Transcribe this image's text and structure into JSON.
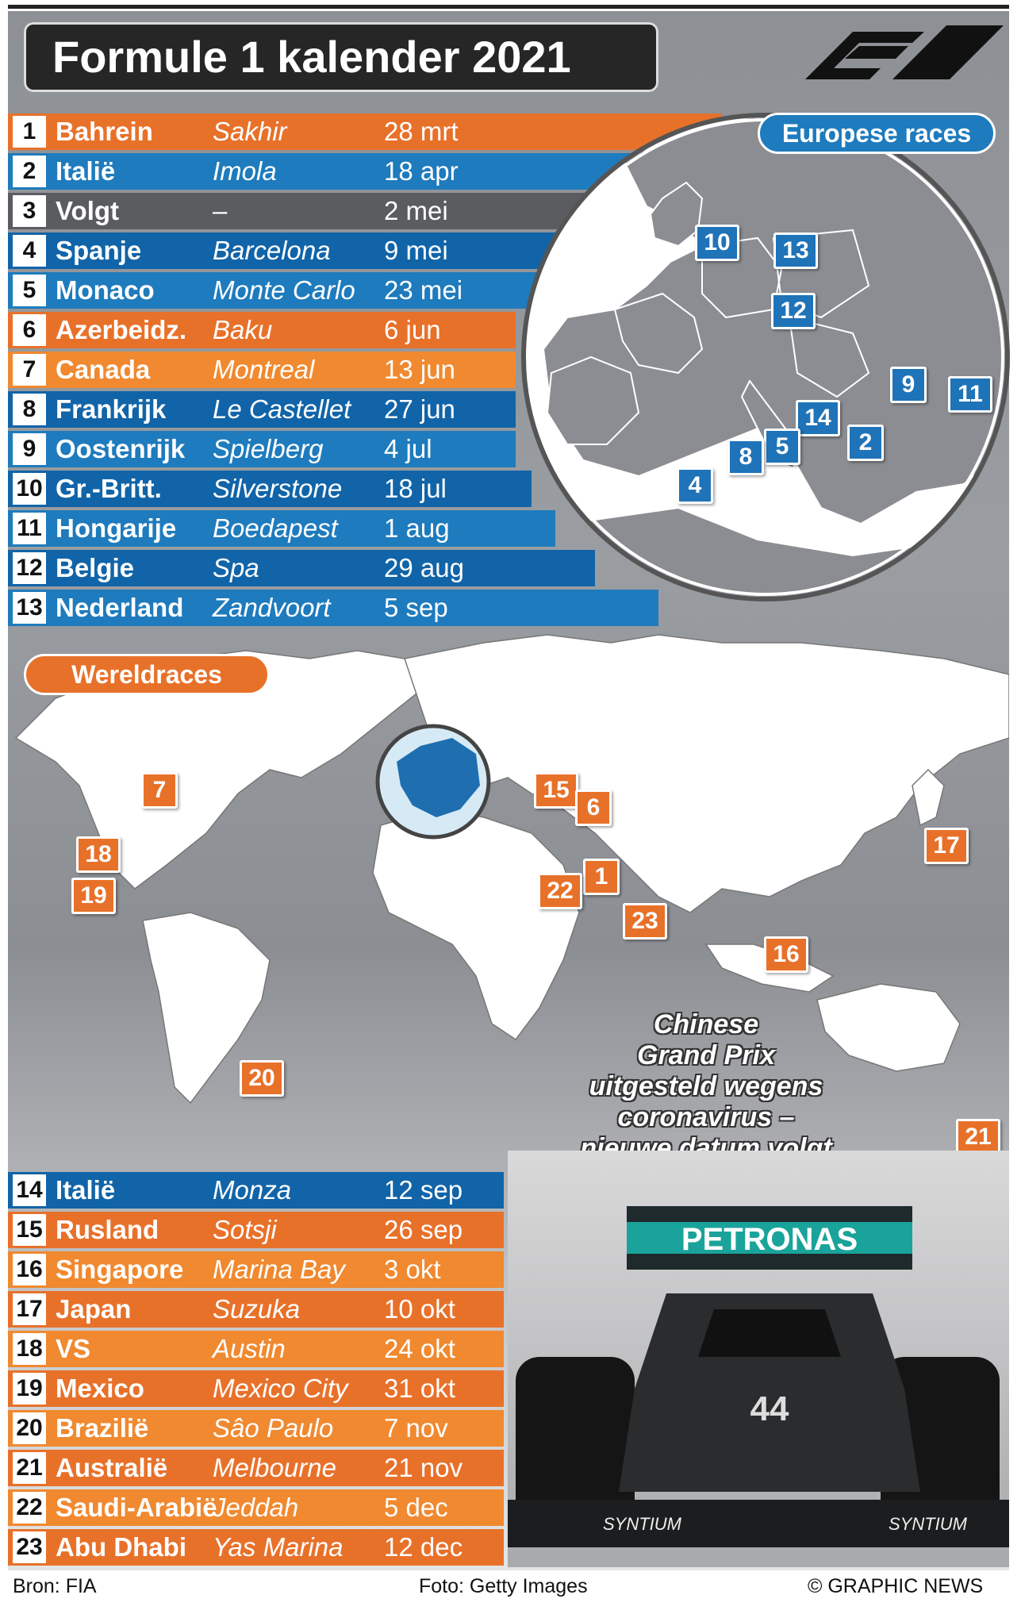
{
  "title": "Formule 1 kalender 2021",
  "logo_icon": "f1-logo-icon",
  "europe_label": "Europese races",
  "world_label": "Wereldraces",
  "note": [
    "Chinese",
    "Grand Prix",
    "uitgesteld wegens",
    "coronavirus –",
    "nieuwe datum volgt"
  ],
  "races_top": [
    {
      "num": "1",
      "country": "Bahrein",
      "city": "Sakhir",
      "date": "28 mrt",
      "color": "#e8712a"
    },
    {
      "num": "2",
      "country": "Italië",
      "city": "Imola",
      "date": "18 apr",
      "color": "#1e7bbd"
    },
    {
      "num": "3",
      "country": "Volgt",
      "city": "–",
      "date": "2 mei",
      "color": "#5a5c60"
    },
    {
      "num": "4",
      "country": "Spanje",
      "city": "Barcelona",
      "date": "9 mei",
      "color": "#1164a8"
    },
    {
      "num": "5",
      "country": "Monaco",
      "city": "Monte Carlo",
      "date": "23 mei",
      "color": "#1e7bbd"
    },
    {
      "num": "6",
      "country": "Azerbeidz.",
      "city": "Baku",
      "date": "6 jun",
      "color": "#e8712a"
    },
    {
      "num": "7",
      "country": "Canada",
      "city": "Montreal",
      "date": "13 jun",
      "color": "#f0892f"
    },
    {
      "num": "8",
      "country": "Frankrijk",
      "city": "Le Castellet",
      "date": "27 jun",
      "color": "#1164a8"
    },
    {
      "num": "9",
      "country": "Oostenrijk",
      "city": "Spielberg",
      "date": "4 jul",
      "color": "#1e7bbd"
    },
    {
      "num": "10",
      "country": "Gr.-Britt.",
      "city": "Silverstone",
      "date": "18 jul",
      "color": "#1164a8"
    },
    {
      "num": "11",
      "country": "Hongarije",
      "city": "Boedapest",
      "date": "1 aug",
      "color": "#1e7bbd"
    },
    {
      "num": "12",
      "country": "Belgie",
      "city": "Spa",
      "date": "29 aug",
      "color": "#1164a8"
    },
    {
      "num": "13",
      "country": "Nederland",
      "city": "Zandvoort",
      "date": "5 sep",
      "color": "#1e7bbd"
    }
  ],
  "races_bottom": [
    {
      "num": "14",
      "country": "Italië",
      "city": "Monza",
      "date": "12 sep",
      "color": "#1164a8"
    },
    {
      "num": "15",
      "country": "Rusland",
      "city": "Sotsji",
      "date": "26 sep",
      "color": "#e8712a"
    },
    {
      "num": "16",
      "country": "Singapore",
      "city": "Marina Bay",
      "date": "3 okt",
      "color": "#f0892f"
    },
    {
      "num": "17",
      "country": "Japan",
      "city": "Suzuka",
      "date": "10 okt",
      "color": "#e8712a"
    },
    {
      "num": "18",
      "country": "VS",
      "city": "Austin",
      "date": "24 okt",
      "color": "#f0892f"
    },
    {
      "num": "19",
      "country": "Mexico",
      "city": "Mexico City",
      "date": "31 okt",
      "color": "#e8712a"
    },
    {
      "num": "20",
      "country": "Brazilië",
      "city": "Sâo Paulo",
      "date": "7 nov",
      "color": "#f0892f"
    },
    {
      "num": "21",
      "country": "Australië",
      "city": "Melbourne",
      "date": "21 nov",
      "color": "#e8712a"
    },
    {
      "num": "22",
      "country": "Saudi-Arabië",
      "city": "Jeddah",
      "date": "5 dec",
      "color": "#f0892f"
    },
    {
      "num": "23",
      "country": "Abu Dhabi",
      "city": "Yas Marina",
      "date": "12 dec",
      "color": "#e8712a"
    }
  ],
  "europe_markers": [
    "10",
    "13",
    "12",
    "9",
    "11",
    "14",
    "2",
    "5",
    "8",
    "4"
  ],
  "world_markers": [
    "7",
    "15",
    "6",
    "18",
    "19",
    "1",
    "22",
    "23",
    "17",
    "16",
    "20",
    "21"
  ],
  "car": {
    "sponsor": "PETRONAS",
    "number": "44",
    "wing_text": "SYNTIUM"
  },
  "footer": {
    "source": "Bron: FIA",
    "photo": "Foto: Getty Images",
    "credit": "© GRAPHIC NEWS"
  }
}
